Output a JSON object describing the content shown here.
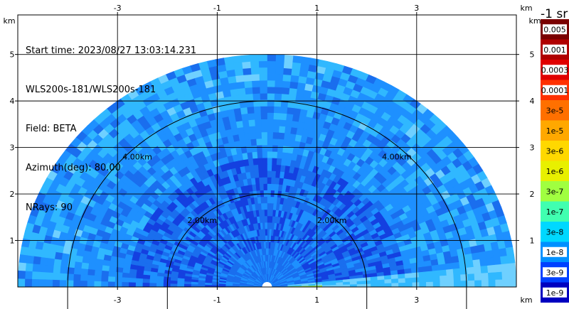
{
  "header": {
    "start_time": "Start time: 2023/08/27 13:03:14.231",
    "radar": "WLS200s-181/WLS200s-181",
    "field": "Field: BETA",
    "azimuth": "Azimuth(deg): 80.00",
    "nrays": "NRays: 90"
  },
  "axes": {
    "x_ticks": [
      "-3",
      "-1",
      "1",
      "3"
    ],
    "x_tick_values": [
      -3,
      -1,
      1,
      3
    ],
    "y_ticks": [
      "1",
      "2",
      "3",
      "4",
      "5"
    ],
    "y_tick_values": [
      1,
      2,
      3,
      4,
      5
    ],
    "unit_label": "km",
    "x_range": [
      -5.0,
      5.0
    ],
    "y_range": [
      0.0,
      5.85
    ]
  },
  "range_rings": [
    {
      "radius_km": 2.0,
      "label": "2.00km"
    },
    {
      "radius_km": 4.0,
      "label": "4.00km"
    }
  ],
  "colorbar": {
    "title": "-1 sr",
    "labels": [
      "0.005",
      "0.001",
      "0.0003",
      "0.0001",
      "3e-5",
      "1e-5",
      "3e-6",
      "1e-6",
      "3e-7",
      "1e-7",
      "3e-8",
      "1e-8",
      "3e-9",
      "1e-9"
    ],
    "colors": [
      "#7a0000",
      "#b00000",
      "#e00000",
      "#ff3000",
      "#ff7000",
      "#ffa800",
      "#ffd800",
      "#e8f000",
      "#a0ff40",
      "#40ffb0",
      "#00d8ff",
      "#0090ff",
      "#0040ff",
      "#0000c0"
    ]
  },
  "field_palette": {
    "sky": "#1e90ff",
    "mid": "#1a6eee",
    "deep": "#1440e0",
    "cyan": "#30b8ff",
    "pale": "#6fd0ff",
    "ground": "#9adf40"
  }
}
